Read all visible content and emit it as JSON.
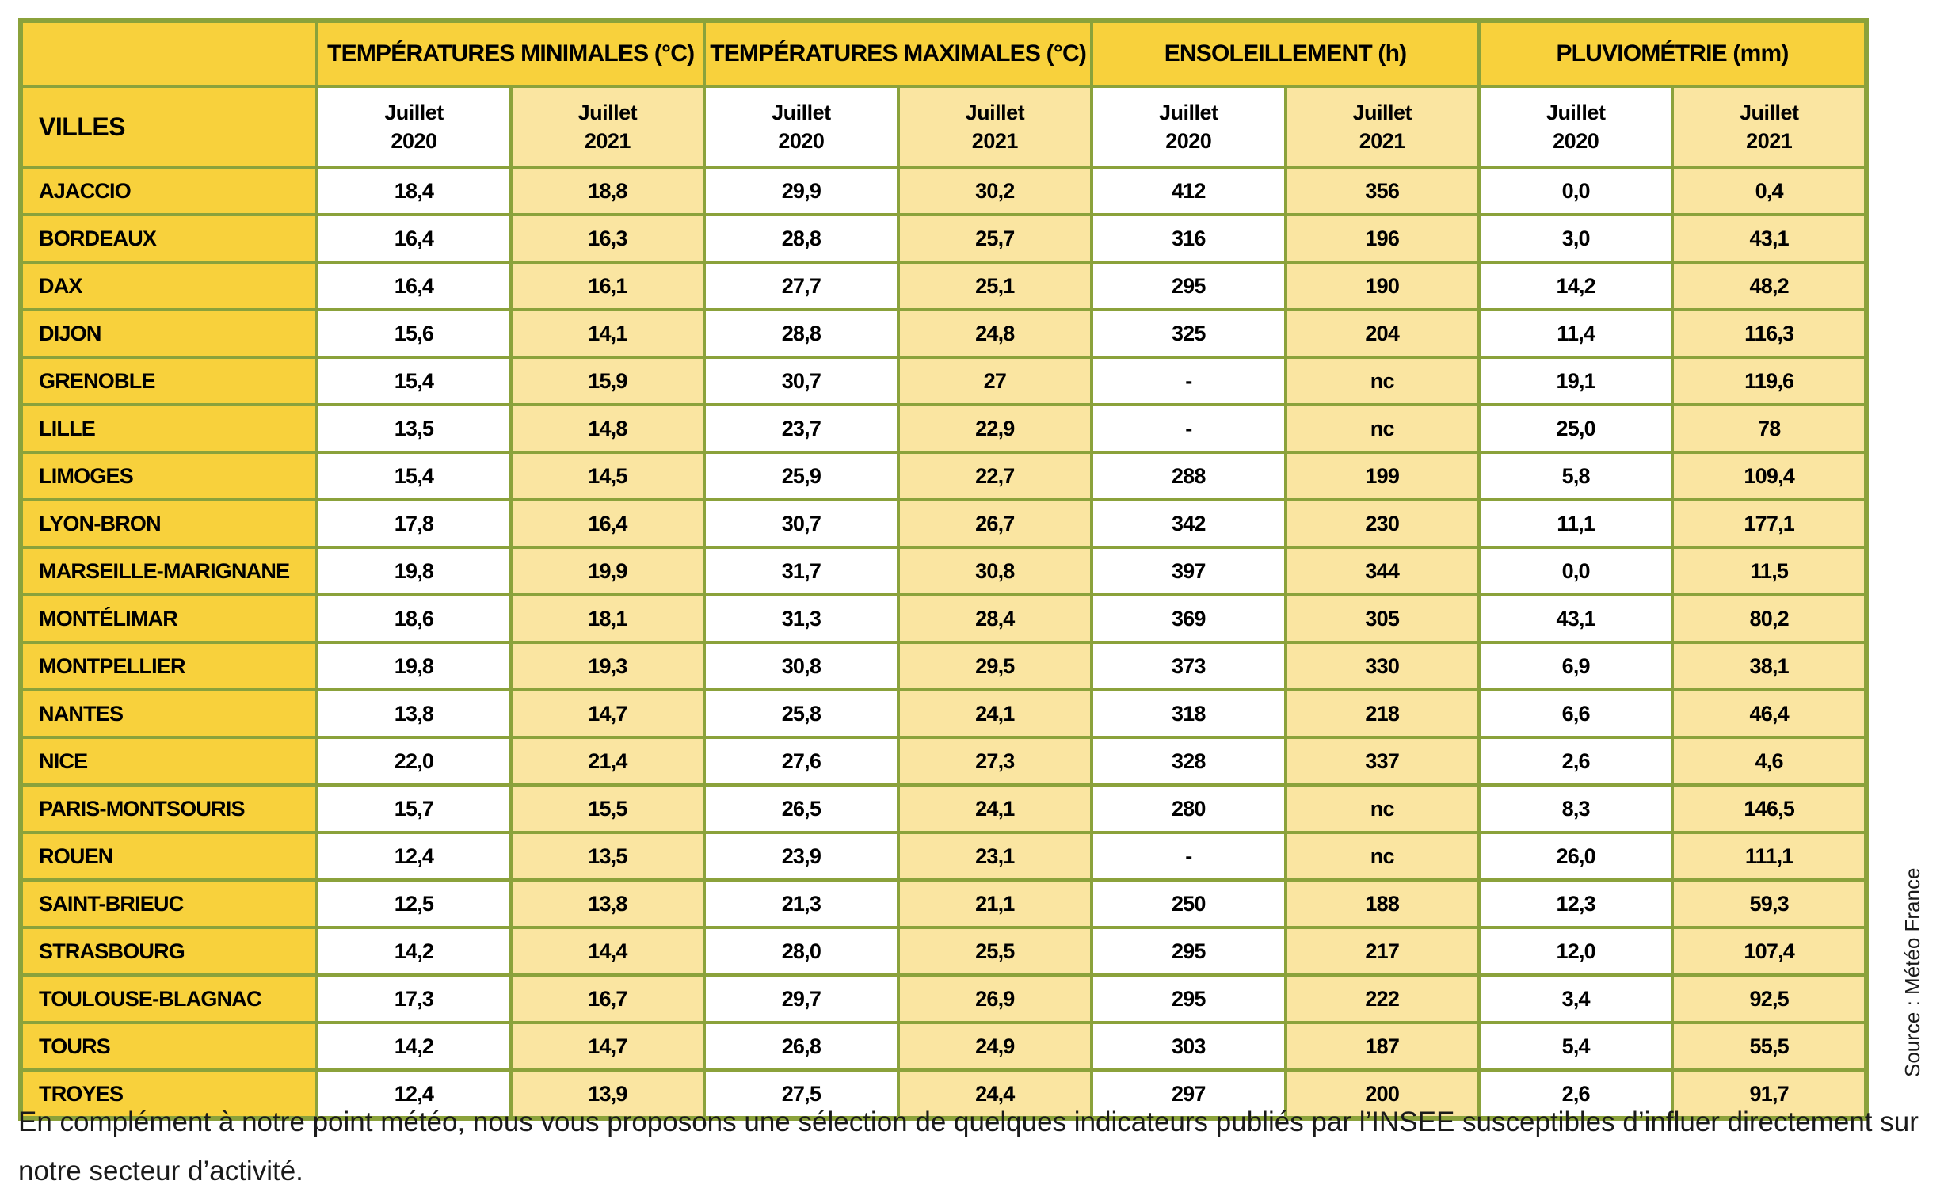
{
  "colors": {
    "gold": "#F8D13C",
    "light_yellow": "#FAE5A1",
    "border_green": "#8BA23B",
    "text": "#000000"
  },
  "table": {
    "villes_label": "VILLES",
    "groups": [
      {
        "label": "TEMPÉRATURES MINIMALES (°C)"
      },
      {
        "label": "TEMPÉRATURES MAXIMALES (°C)"
      },
      {
        "label": "ENSOLEILLEMENT (h)"
      },
      {
        "label": "PLUVIOMÉTRIE (mm)"
      }
    ],
    "sub_header": {
      "month": "Juillet",
      "years": [
        "2020",
        "2021"
      ]
    },
    "rows": [
      {
        "city": "AJACCIO",
        "values": [
          "18,4",
          "18,8",
          "29,9",
          "30,2",
          "412",
          "356",
          "0,0",
          "0,4"
        ]
      },
      {
        "city": "BORDEAUX",
        "values": [
          "16,4",
          "16,3",
          "28,8",
          "25,7",
          "316",
          "196",
          "3,0",
          "43,1"
        ]
      },
      {
        "city": "DAX",
        "values": [
          "16,4",
          "16,1",
          "27,7",
          "25,1",
          "295",
          "190",
          "14,2",
          "48,2"
        ]
      },
      {
        "city": "DIJON",
        "values": [
          "15,6",
          "14,1",
          "28,8",
          "24,8",
          "325",
          "204",
          "11,4",
          "116,3"
        ]
      },
      {
        "city": "GRENOBLE",
        "values": [
          "15,4",
          "15,9",
          "30,7",
          "27",
          "-",
          "nc",
          "19,1",
          "119,6"
        ]
      },
      {
        "city": "LILLE",
        "values": [
          "13,5",
          "14,8",
          "23,7",
          "22,9",
          "-",
          "nc",
          "25,0",
          "78"
        ]
      },
      {
        "city": "LIMOGES",
        "values": [
          "15,4",
          "14,5",
          "25,9",
          "22,7",
          "288",
          "199",
          "5,8",
          "109,4"
        ]
      },
      {
        "city": "LYON-BRON",
        "values": [
          "17,8",
          "16,4",
          "30,7",
          "26,7",
          "342",
          "230",
          "11,1",
          "177,1"
        ]
      },
      {
        "city": "MARSEILLE-MARIGNANE",
        "values": [
          "19,8",
          "19,9",
          "31,7",
          "30,8",
          "397",
          "344",
          "0,0",
          "11,5"
        ]
      },
      {
        "city": "MONTÉLIMAR",
        "values": [
          "18,6",
          "18,1",
          "31,3",
          "28,4",
          "369",
          "305",
          "43,1",
          "80,2"
        ]
      },
      {
        "city": "MONTPELLIER",
        "values": [
          "19,8",
          "19,3",
          "30,8",
          "29,5",
          "373",
          "330",
          "6,9",
          "38,1"
        ]
      },
      {
        "city": "NANTES",
        "values": [
          "13,8",
          "14,7",
          "25,8",
          "24,1",
          "318",
          "218",
          "6,6",
          "46,4"
        ]
      },
      {
        "city": "NICE",
        "values": [
          "22,0",
          "21,4",
          "27,6",
          "27,3",
          "328",
          "337",
          "2,6",
          "4,6"
        ]
      },
      {
        "city": "PARIS-MONTSOURIS",
        "values": [
          "15,7",
          "15,5",
          "26,5",
          "24,1",
          "280",
          "nc",
          "8,3",
          "146,5"
        ]
      },
      {
        "city": "ROUEN",
        "values": [
          "12,4",
          "13,5",
          "23,9",
          "23,1",
          "-",
          "nc",
          "26,0",
          "111,1"
        ]
      },
      {
        "city": "SAINT-BRIEUC",
        "values": [
          "12,5",
          "13,8",
          "21,3",
          "21,1",
          "250",
          "188",
          "12,3",
          "59,3"
        ]
      },
      {
        "city": "STRASBOURG",
        "values": [
          "14,2",
          "14,4",
          "28,0",
          "25,5",
          "295",
          "217",
          "12,0",
          "107,4"
        ]
      },
      {
        "city": "TOULOUSE-BLAGNAC",
        "values": [
          "17,3",
          "16,7",
          "29,7",
          "26,9",
          "295",
          "222",
          "3,4",
          "92,5"
        ]
      },
      {
        "city": "TOURS",
        "values": [
          "14,2",
          "14,7",
          "26,8",
          "24,9",
          "303",
          "187",
          "5,4",
          "55,5"
        ]
      },
      {
        "city": "TROYES",
        "values": [
          "12,4",
          "13,9",
          "27,5",
          "24,4",
          "297",
          "200",
          "2,6",
          "91,7"
        ]
      }
    ]
  },
  "footer": {
    "text": "En complément à notre point météo, nous vous proposons une sélection de quelques indicateurs publiés par l’INSEE susceptibles d’influer directement sur notre secteur d’activité."
  },
  "source": {
    "text": "Source : Météo France"
  }
}
